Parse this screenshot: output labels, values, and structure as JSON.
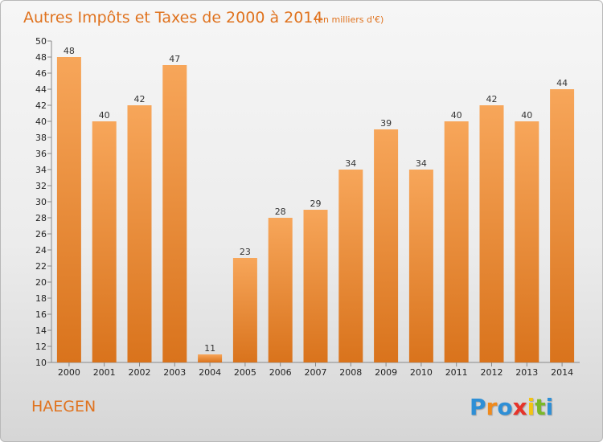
{
  "chart_data": {
    "type": "bar",
    "title": "Autres Impôts et Taxes de 2000 à 2014",
    "subtitle": "(en milliers d'€)",
    "categories": [
      "2000",
      "2001",
      "2002",
      "2003",
      "2004",
      "2005",
      "2006",
      "2007",
      "2008",
      "2009",
      "2010",
      "2011",
      "2012",
      "2013",
      "2014"
    ],
    "values": [
      48,
      40,
      42,
      47,
      11,
      23,
      28,
      29,
      34,
      39,
      34,
      40,
      42,
      40,
      44
    ],
    "value_labels": [
      "48",
      "40",
      "42",
      "47",
      "11",
      "23",
      "28",
      "29",
      "34",
      "39",
      "34",
      "40",
      "42",
      "40",
      "44"
    ],
    "ylim": [
      10,
      50
    ],
    "yticks": [
      "10",
      "12",
      "14",
      "16",
      "18",
      "20",
      "22",
      "24",
      "26",
      "28",
      "30",
      "32",
      "34",
      "36",
      "38",
      "40",
      "42",
      "44",
      "46",
      "48",
      "50"
    ],
    "bar_color_top": "#f7a65a",
    "bar_color_bottom": "#d9731c",
    "grid": false
  },
  "footer": {
    "commune": "HAEGEN",
    "brand_letters": [
      "P",
      "r",
      "o",
      "x",
      "i",
      "t",
      "i"
    ],
    "brand_colors": [
      "#2e8fd6",
      "#f08a1c",
      "#2e8fd6",
      "#e6332a",
      "#f3c313",
      "#7ab829",
      "#2e8fd6"
    ]
  }
}
